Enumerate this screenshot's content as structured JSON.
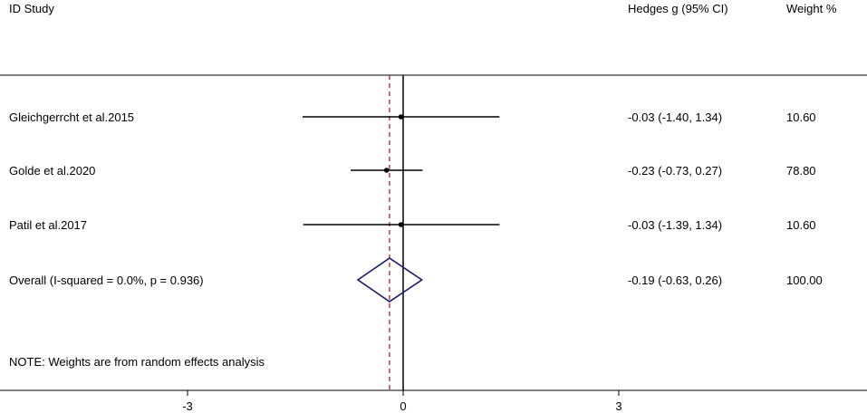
{
  "chart_data": {
    "type": "forest",
    "headers": {
      "study": "ID Study",
      "effect": "Hedges g (95% CI)",
      "weight": "Weight %"
    },
    "studies": [
      {
        "label": "Gleichgerrcht et al.2015",
        "estimate": -0.03,
        "lower": -1.4,
        "upper": 1.34,
        "ci_text": "-0.03 (-1.40, 1.34)",
        "weight": "10.60"
      },
      {
        "label": "Golde et al.2020",
        "estimate": -0.23,
        "lower": -0.73,
        "upper": 0.27,
        "ci_text": "-0.23 (-0.73, 0.27)",
        "weight": "78.80"
      },
      {
        "label": "Patil et al.2017",
        "estimate": -0.03,
        "lower": -1.39,
        "upper": 1.34,
        "ci_text": "-0.03 (-1.39, 1.34)",
        "weight": "10.60"
      }
    ],
    "overall": {
      "label": "Overall  (I-squared = 0.0%, p = 0.936)",
      "estimate": -0.19,
      "lower": -0.63,
      "upper": 0.26,
      "ci_text": "-0.19 (-0.63, 0.26)",
      "weight": "100.00"
    },
    "note": "NOTE: Weights are from random effects analysis",
    "x_ticks": [
      -3,
      0,
      3
    ],
    "x_tick_labels": [
      "-3",
      "0",
      "3"
    ],
    "null_value": 0,
    "colors": {
      "line": "#000000",
      "diamond": "#1a1a6e",
      "overall_dashed": "#a52a2a"
    }
  }
}
